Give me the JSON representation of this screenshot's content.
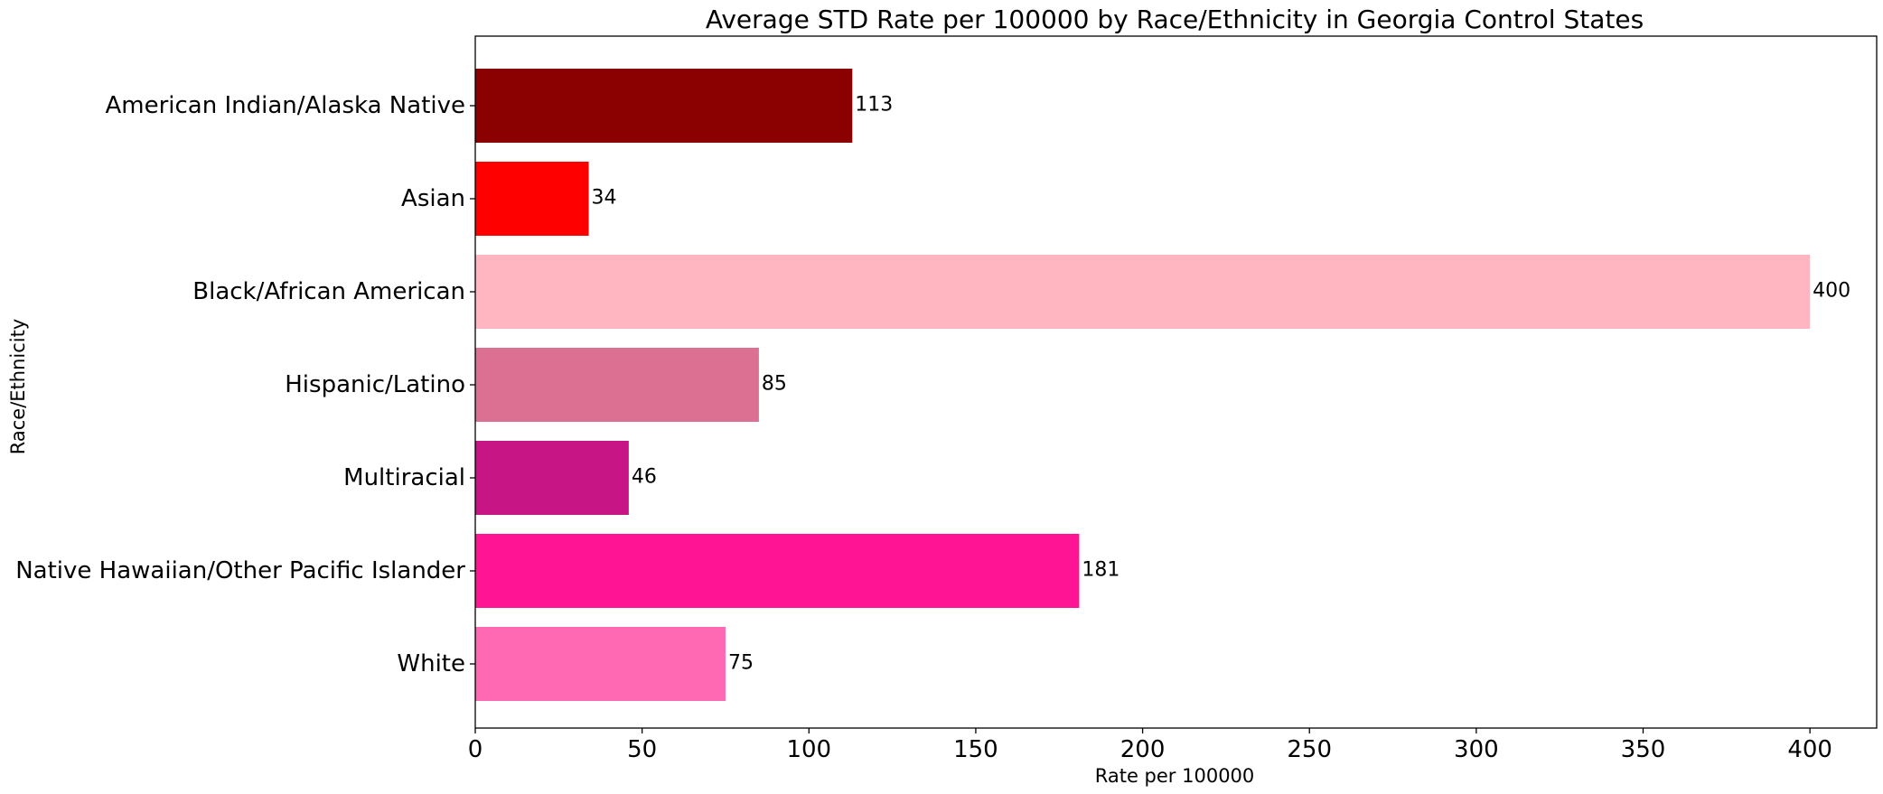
{
  "chart_data": {
    "type": "bar",
    "orientation": "horizontal",
    "title": "Average STD Rate per 100000 by Race/Ethnicity in Georgia Control States",
    "xlabel": "Rate per 100000",
    "ylabel": "Race/Ethnicity",
    "xlim": [
      0,
      420
    ],
    "x_ticks": [
      0,
      50,
      100,
      150,
      200,
      250,
      300,
      350,
      400
    ],
    "x_tick_labels": [
      "0",
      "50",
      "100",
      "150",
      "200",
      "250",
      "300",
      "350",
      "400"
    ],
    "grid": false,
    "legend": "none",
    "categories": [
      "American Indian/Alaska Native",
      "Asian",
      "Black/African American",
      "Hispanic/Latino",
      "Multiracial",
      "Native Hawaiian/Other Pacific Islander",
      "White"
    ],
    "values": [
      113,
      34,
      400,
      85,
      46,
      181,
      75
    ],
    "data_labels": [
      "113",
      "34",
      "400",
      "85",
      "46",
      "181",
      "75"
    ],
    "colors": [
      "#8b0000",
      "#ff0000",
      "#ffb6c1",
      "#db7093",
      "#c71585",
      "#ff1493",
      "#ff69b4"
    ]
  }
}
